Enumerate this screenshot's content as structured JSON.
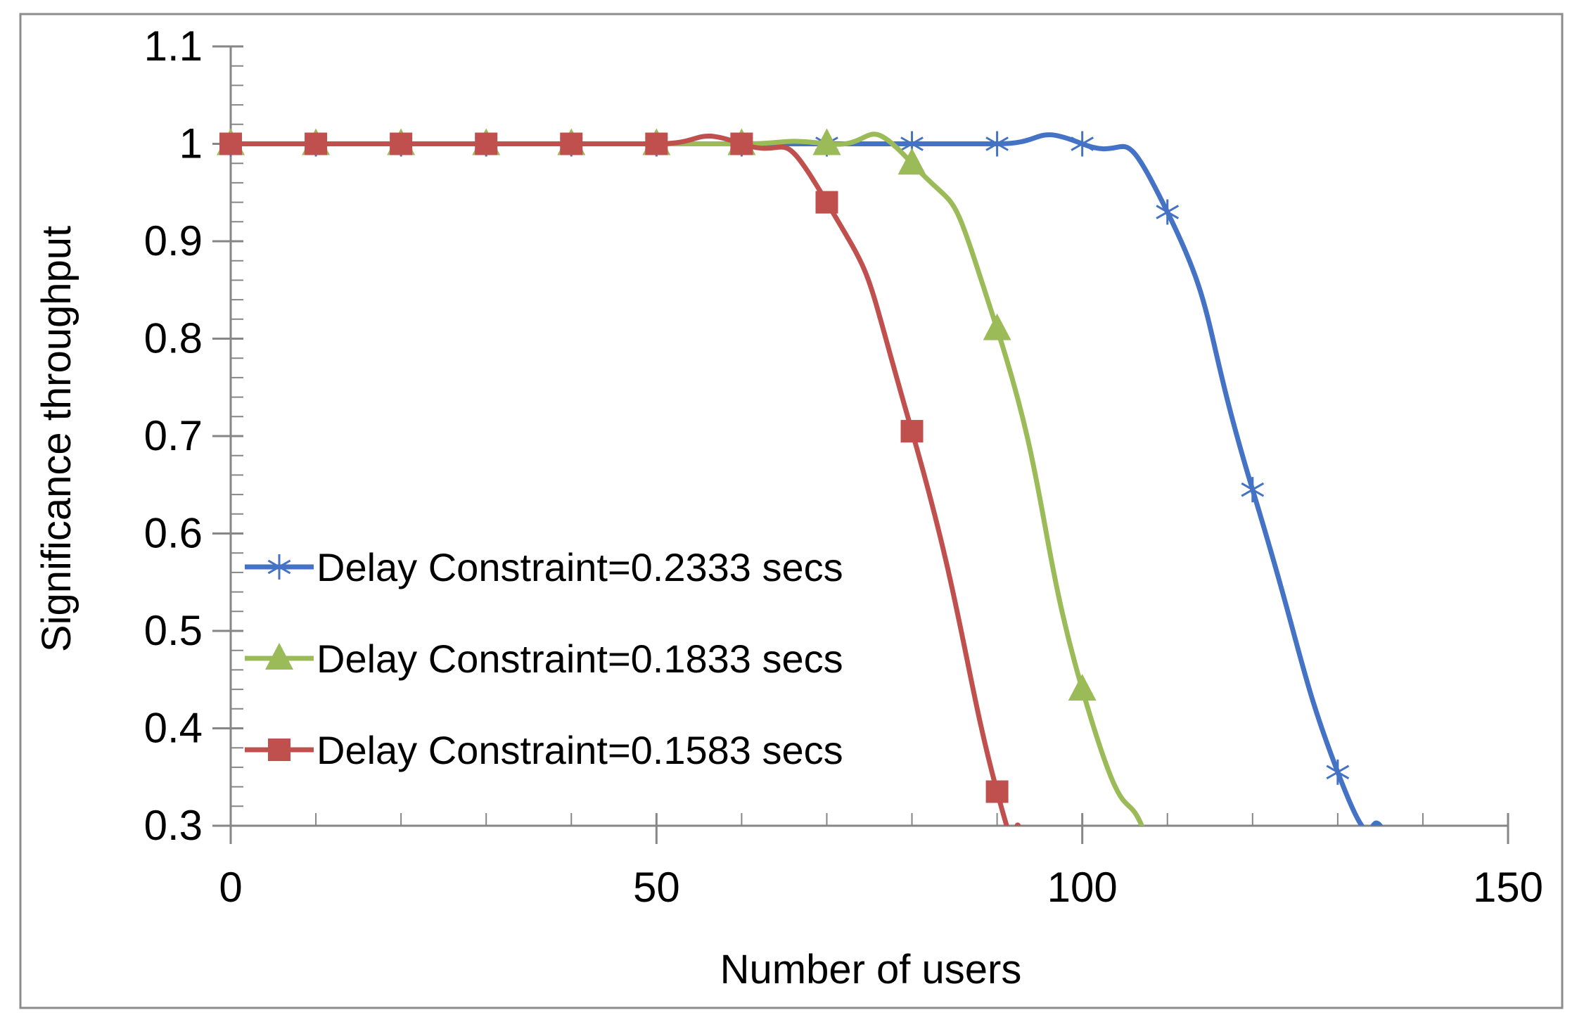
{
  "chart_data": {
    "type": "line",
    "title": "",
    "xlabel": "Number of users",
    "ylabel": "Significance throughput",
    "xlim": [
      0,
      150
    ],
    "ylim": [
      0.3,
      1.1
    ],
    "x_ticks": [
      "0",
      "50",
      "100",
      "150"
    ],
    "y_ticks": [
      "0.3",
      "0.4",
      "0.5",
      "0.6",
      "0.7",
      "0.8",
      "0.9",
      "1",
      "1.1"
    ],
    "grid": false,
    "legend_position": "bottom-left",
    "series": [
      {
        "name": "Delay Constraint=0.2333 secs",
        "color": "#4472C4",
        "marker": "star",
        "x": [
          0,
          10,
          20,
          30,
          40,
          50,
          60,
          70,
          80,
          90,
          100,
          110,
          120,
          130
        ],
        "y": [
          1,
          1,
          1,
          1,
          1,
          1,
          1,
          1,
          1,
          1,
          1,
          0.93,
          0.645,
          0.355
        ],
        "line_end": [
          135,
          0.3
        ]
      },
      {
        "name": "Delay Constraint=0.1833 secs",
        "color": "#9BBB59",
        "marker": "triangle",
        "x": [
          0,
          10,
          20,
          30,
          40,
          50,
          60,
          70,
          80,
          90,
          100
        ],
        "y": [
          1,
          1,
          1,
          1,
          1,
          1,
          1,
          1,
          0.98,
          0.81,
          0.44
        ],
        "line_end": [
          107,
          0.3
        ]
      },
      {
        "name": "Delay Constraint=0.1583 secs",
        "color": "#C0504D",
        "marker": "square",
        "x": [
          0,
          10,
          20,
          30,
          40,
          50,
          60,
          70,
          80,
          90
        ],
        "y": [
          1,
          1,
          1,
          1,
          1,
          1,
          1,
          0.94,
          0.705,
          0.335
        ],
        "line_end": [
          92.5,
          0.3
        ]
      }
    ]
  }
}
